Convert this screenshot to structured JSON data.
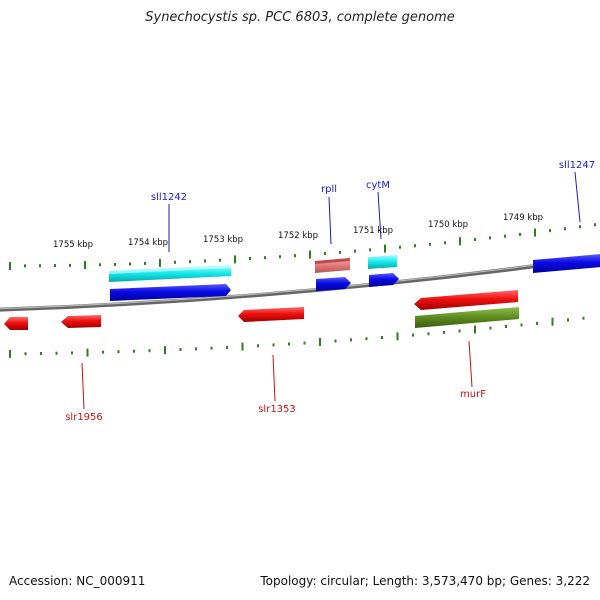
{
  "title": "Synechocystis sp. PCC 6803, complete genome",
  "footer": {
    "accession": "Accession: NC_000911",
    "summary": "Topology: circular; Length: 3,573,470 bp; Genes: 3,222"
  },
  "colors": {
    "background": "#ffffff",
    "backbone": "#8a8a8a",
    "tick": "#2e7d1e",
    "label_plus": "#1a1acc",
    "label_minus": "#cc1111",
    "gene_blue": "#0a0ae6",
    "gene_cyan": "#12e8ea",
    "gene_red": "#f01010",
    "gene_pink": "#e07a7a",
    "gene_olive": "#5c8a1e"
  },
  "scale_labels": [
    "1755 kbp",
    "1754 kbp",
    "1753 kbp",
    "1752 kbp",
    "1751 kbp",
    "1750 kbp",
    "1749 kbp"
  ],
  "gene_labels": {
    "sll1242": "sll1242",
    "rpll": "rpll",
    "cytM": "cytM",
    "sll1247": "sll1247",
    "slr1956": "slr1956",
    "slr1353": "slr1353",
    "murF": "murF"
  }
}
